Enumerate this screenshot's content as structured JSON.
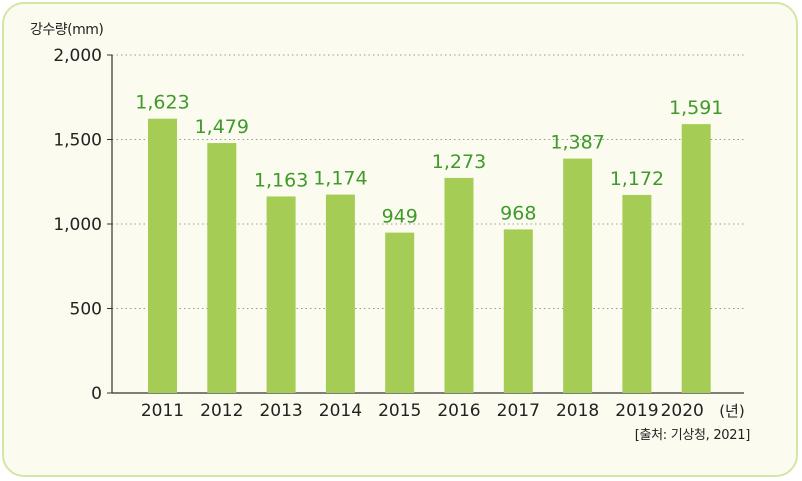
{
  "chart_data": {
    "type": "bar",
    "ylabel": "강수량(mm)",
    "x_unit_suffix": "(년)",
    "categories": [
      "2011",
      "2012",
      "2013",
      "2014",
      "2015",
      "2016",
      "2017",
      "2018",
      "2019",
      "2020"
    ],
    "values": [
      1623,
      1479,
      1163,
      1174,
      949,
      1273,
      968,
      1387,
      1172,
      1591
    ],
    "value_labels": [
      "1,623",
      "1,479",
      "1,163",
      "1,174",
      "949",
      "1,273",
      "968",
      "1,387",
      "1,172",
      "1,591"
    ],
    "ylim": [
      0,
      2000
    ],
    "yticks": [
      0,
      500,
      1000,
      1500,
      2000
    ],
    "ytick_labels": [
      "0",
      "500",
      "1,000",
      "1,500",
      "2,000"
    ],
    "grid": true,
    "grid_style": "dotted",
    "colors": {
      "bar": "#a5cd55",
      "value_label": "#3f9a2a",
      "panel_bg": "#fbfcef",
      "panel_border": "#d3e6a8"
    }
  },
  "source": "[출처: 기상청, 2021]"
}
